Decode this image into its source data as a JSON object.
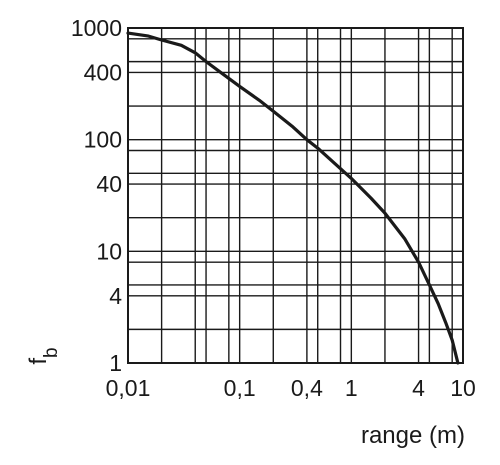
{
  "chart_data": {
    "type": "line",
    "title": "",
    "xlabel": "range (m)",
    "ylabel": "f_b",
    "ylabel_main": "f",
    "ylabel_sub": "b",
    "x_scale": "log",
    "y_scale": "log",
    "xlim": [
      0.01,
      10
    ],
    "ylim": [
      1,
      1000
    ],
    "grid": true,
    "x_ticks": [
      {
        "value": 0.01,
        "label": "0,01"
      },
      {
        "value": 0.1,
        "label": "0,1"
      },
      {
        "value": 0.4,
        "label": "0,4"
      },
      {
        "value": 1,
        "label": "1"
      },
      {
        "value": 4,
        "label": "4"
      },
      {
        "value": 10,
        "label": "10"
      }
    ],
    "y_ticks": [
      {
        "value": 1,
        "label": "1"
      },
      {
        "value": 4,
        "label": "4"
      },
      {
        "value": 10,
        "label": "10"
      },
      {
        "value": 40,
        "label": "40"
      },
      {
        "value": 100,
        "label": "100"
      },
      {
        "value": 400,
        "label": "400"
      },
      {
        "value": 1000,
        "label": "1000"
      }
    ],
    "x_gridlines": [
      0.01,
      0.02,
      0.04,
      0.05,
      0.08,
      0.1,
      0.2,
      0.4,
      0.5,
      0.8,
      1,
      2,
      4,
      5,
      8,
      10
    ],
    "y_gridlines": [
      1,
      2,
      4,
      5,
      8,
      10,
      20,
      40,
      50,
      80,
      100,
      200,
      400,
      500,
      800,
      1000
    ],
    "series": [
      {
        "color": "#1a1a1a",
        "x": [
          0.01,
          0.015,
          0.02,
          0.03,
          0.04,
          0.05,
          0.07,
          0.1,
          0.15,
          0.2,
          0.3,
          0.4,
          0.5,
          0.7,
          1,
          1.5,
          2,
          3,
          4,
          5,
          6,
          7,
          8,
          9
        ],
        "y": [
          900,
          850,
          780,
          700,
          600,
          500,
          390,
          300,
          225,
          180,
          130,
          100,
          84,
          62,
          45,
          30,
          22,
          13,
          8,
          5,
          3.4,
          2.3,
          1.6,
          1
        ]
      }
    ]
  }
}
